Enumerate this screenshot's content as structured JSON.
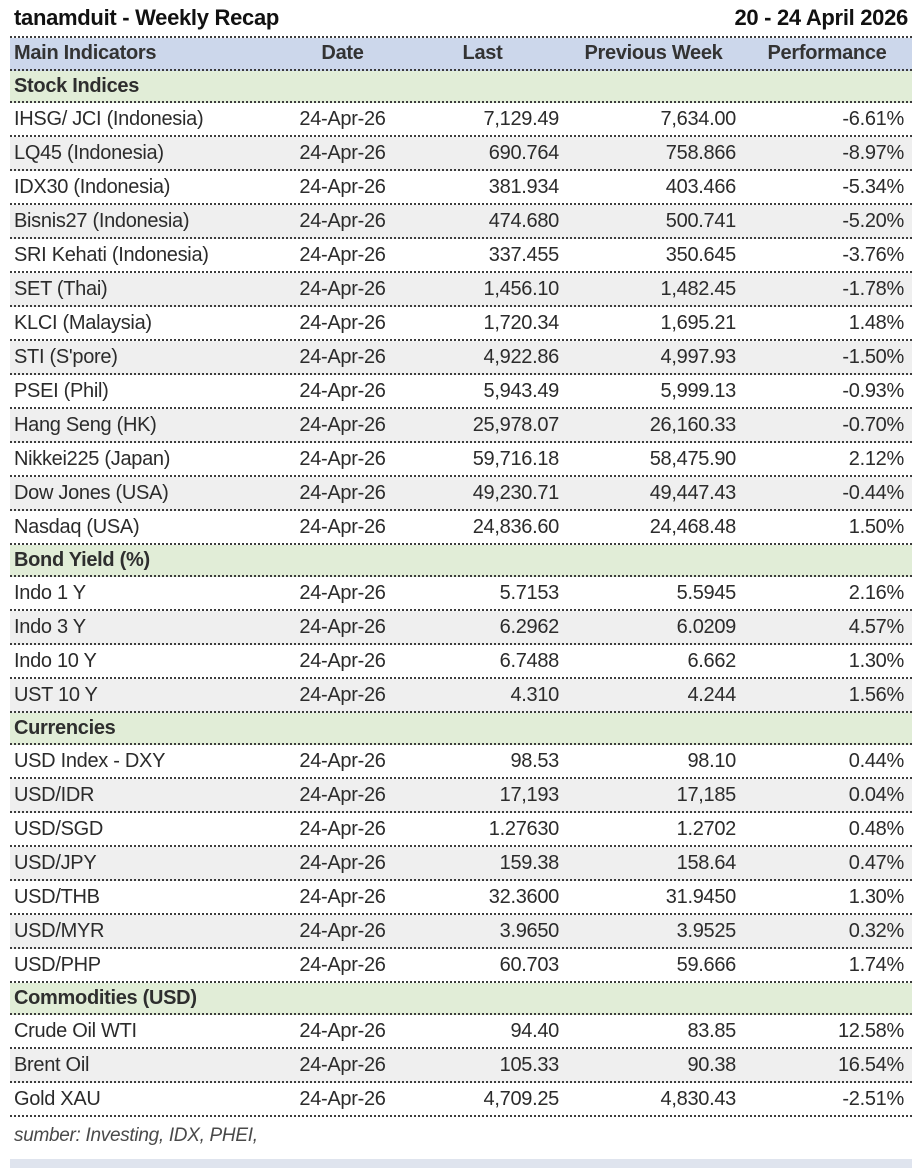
{
  "title": "tanamduit - Weekly Recap",
  "date_range": "20 - 24 April 2026",
  "columns": [
    "Main Indicators",
    "Date",
    "Last",
    "Previous Week",
    "Performance"
  ],
  "sections": [
    {
      "name": "Stock Indices",
      "rows": [
        {
          "indicator": "IHSG/ JCI (Indonesia)",
          "date": "24-Apr-26",
          "last": "7,129.49",
          "previous": "7,634.00",
          "performance": "-6.61%"
        },
        {
          "indicator": "LQ45 (Indonesia)",
          "date": "24-Apr-26",
          "last": "690.764",
          "previous": "758.866",
          "performance": "-8.97%"
        },
        {
          "indicator": "IDX30 (Indonesia)",
          "date": "24-Apr-26",
          "last": "381.934",
          "previous": "403.466",
          "performance": "-5.34%"
        },
        {
          "indicator": "Bisnis27 (Indonesia)",
          "date": "24-Apr-26",
          "last": "474.680",
          "previous": "500.741",
          "performance": "-5.20%"
        },
        {
          "indicator": "SRI Kehati (Indonesia)",
          "date": "24-Apr-26",
          "last": "337.455",
          "previous": "350.645",
          "performance": "-3.76%"
        },
        {
          "indicator": "SET (Thai)",
          "date": "24-Apr-26",
          "last": "1,456.10",
          "previous": "1,482.45",
          "performance": "-1.78%"
        },
        {
          "indicator": "KLCI (Malaysia)",
          "date": "24-Apr-26",
          "last": "1,720.34",
          "previous": "1,695.21",
          "performance": "1.48%"
        },
        {
          "indicator": "STI (S'pore)",
          "date": "24-Apr-26",
          "last": "4,922.86",
          "previous": "4,997.93",
          "performance": "-1.50%"
        },
        {
          "indicator": "PSEI (Phil)",
          "date": "24-Apr-26",
          "last": "5,943.49",
          "previous": "5,999.13",
          "performance": "-0.93%"
        },
        {
          "indicator": "Hang Seng (HK)",
          "date": "24-Apr-26",
          "last": "25,978.07",
          "previous": "26,160.33",
          "performance": "-0.70%"
        },
        {
          "indicator": "Nikkei225 (Japan)",
          "date": "24-Apr-26",
          "last": "59,716.18",
          "previous": "58,475.90",
          "performance": "2.12%"
        },
        {
          "indicator": "Dow Jones (USA)",
          "date": "24-Apr-26",
          "last": "49,230.71",
          "previous": "49,447.43",
          "performance": "-0.44%"
        },
        {
          "indicator": "Nasdaq (USA)",
          "date": "24-Apr-26",
          "last": "24,836.60",
          "previous": "24,468.48",
          "performance": "1.50%"
        }
      ]
    },
    {
      "name": "Bond Yield (%)",
      "rows": [
        {
          "indicator": "Indo 1 Y",
          "date": "24-Apr-26",
          "last": "5.7153",
          "previous": "5.5945",
          "performance": "2.16%"
        },
        {
          "indicator": "Indo 3 Y",
          "date": "24-Apr-26",
          "last": "6.2962",
          "previous": "6.0209",
          "performance": "4.57%"
        },
        {
          "indicator": "Indo 10 Y",
          "date": "24-Apr-26",
          "last": "6.7488",
          "previous": "6.662",
          "performance": "1.30%"
        },
        {
          "indicator": "UST 10 Y",
          "date": "24-Apr-26",
          "last": "4.310",
          "previous": "4.244",
          "performance": "1.56%"
        }
      ]
    },
    {
      "name": "Currencies",
      "rows": [
        {
          "indicator": "USD Index - DXY",
          "date": "24-Apr-26",
          "last": "98.53",
          "previous": "98.10",
          "performance": "0.44%"
        },
        {
          "indicator": "USD/IDR",
          "date": "24-Apr-26",
          "last": "17,193",
          "previous": "17,185",
          "performance": "0.04%"
        },
        {
          "indicator": "USD/SGD",
          "date": "24-Apr-26",
          "last": "1.27630",
          "previous": "1.2702",
          "performance": "0.48%"
        },
        {
          "indicator": "USD/JPY",
          "date": "24-Apr-26",
          "last": "159.38",
          "previous": "158.64",
          "performance": "0.47%"
        },
        {
          "indicator": "USD/THB",
          "date": "24-Apr-26",
          "last": "32.3600",
          "previous": "31.9450",
          "performance": "1.30%"
        },
        {
          "indicator": "USD/MYR",
          "date": "24-Apr-26",
          "last": "3.9650",
          "previous": "3.9525",
          "performance": "0.32%"
        },
        {
          "indicator": "USD/PHP",
          "date": "24-Apr-26",
          "last": "60.703",
          "previous": "59.666",
          "performance": "1.74%"
        }
      ]
    },
    {
      "name": "Commodities (USD)",
      "rows": [
        {
          "indicator": "Crude Oil WTI",
          "date": "24-Apr-26",
          "last": "94.40",
          "previous": "83.85",
          "performance": "12.58%"
        },
        {
          "indicator": "Brent Oil",
          "date": "24-Apr-26",
          "last": "105.33",
          "previous": "90.38",
          "performance": "16.54%"
        },
        {
          "indicator": "Gold XAU",
          "date": "24-Apr-26",
          "last": "4,709.25",
          "previous": "4,830.43",
          "performance": "-2.51%"
        }
      ]
    }
  ],
  "footer": "sumber: Investing, IDX, PHEI,",
  "colors": {
    "header_bg": "#ccd7eb",
    "section_bg": "#e1edd7",
    "stripe_bg": "#efefef",
    "divider": "#3c3c3c"
  }
}
